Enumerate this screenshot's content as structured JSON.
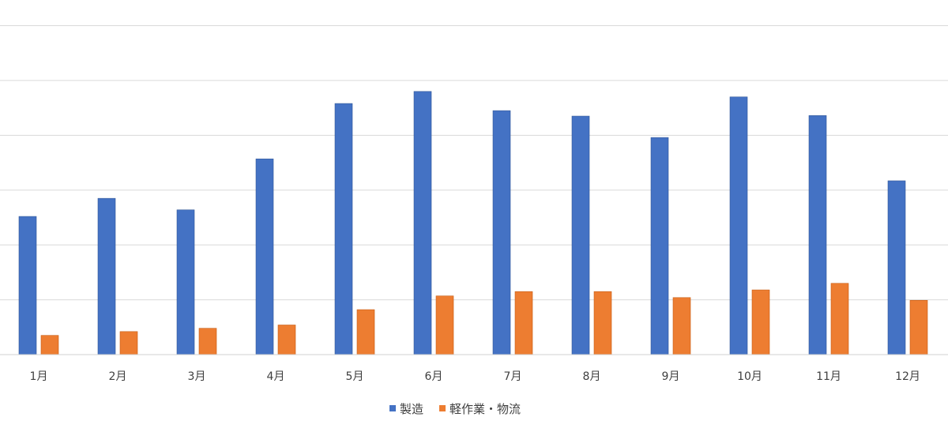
{
  "chart_data": {
    "type": "bar",
    "categories": [
      "1月",
      "2月",
      "3月",
      "4月",
      "5月",
      "6月",
      "7月",
      "8月",
      "9月",
      "10月",
      "11月",
      "12月"
    ],
    "series": [
      {
        "name": "製造",
        "color": "#4472C4",
        "values": [
          252,
          285,
          264,
          357,
          458,
          480,
          445,
          435,
          396,
          470,
          436,
          317
        ]
      },
      {
        "name": "軽作業・物流",
        "color": "#ED7D31",
        "values": [
          35,
          42,
          48,
          54,
          82,
          107,
          115,
          115,
          104,
          118,
          130,
          99
        ]
      }
    ],
    "ylim": [
      0,
      600
    ],
    "grid": true,
    "legend": "bottom"
  }
}
